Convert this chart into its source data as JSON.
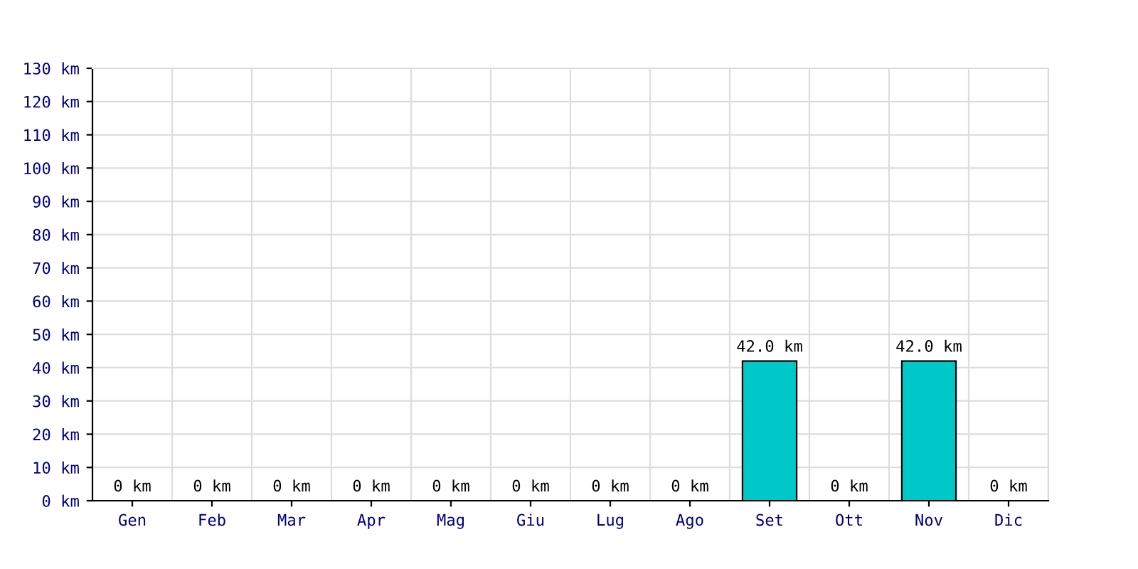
{
  "chart_data": {
    "type": "bar",
    "categories": [
      "Gen",
      "Feb",
      "Mar",
      "Apr",
      "Mag",
      "Giu",
      "Lug",
      "Ago",
      "Set",
      "Ott",
      "Nov",
      "Dic"
    ],
    "values": [
      0,
      0,
      0,
      0,
      0,
      0,
      0,
      0,
      42.0,
      0,
      42.0,
      0
    ],
    "value_labels": [
      "0 km",
      "0 km",
      "0 km",
      "0 km",
      "0 km",
      "0 km",
      "0 km",
      "0 km",
      "42.0 km",
      "0 km",
      "42.0 km",
      "0 km"
    ],
    "color": "#00c8c8",
    "ylim": [
      0,
      130
    ],
    "yticks": [
      {
        "value": 0,
        "label": "0 km"
      },
      {
        "value": 10,
        "label": "10 km"
      },
      {
        "value": 20,
        "label": "20 km"
      },
      {
        "value": 30,
        "label": "30 km"
      },
      {
        "value": 40,
        "label": "40 km"
      },
      {
        "value": 50,
        "label": "50 km"
      },
      {
        "value": 60,
        "label": "60 km"
      },
      {
        "value": 70,
        "label": "70 km"
      },
      {
        "value": 80,
        "label": "80 km"
      },
      {
        "value": 90,
        "label": "90 km"
      },
      {
        "value": 100,
        "label": "100 km"
      },
      {
        "value": 110,
        "label": "110 km"
      },
      {
        "value": 120,
        "label": "120 km"
      },
      {
        "value": 130,
        "label": "130 km"
      }
    ],
    "grid": true
  }
}
